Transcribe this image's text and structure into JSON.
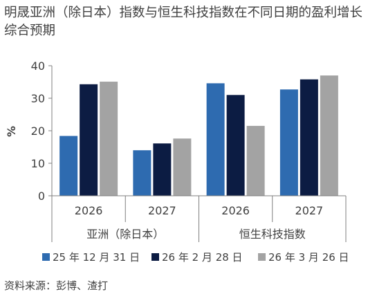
{
  "title": "明晟亚洲（除日本）指数与恒生科技指数在不同日期的盈利增长综合预期",
  "source": "资料来源：彭博、渣打",
  "chart_data": {
    "type": "bar",
    "title": "明晟亚洲（除日本）指数与恒生科技指数在不同日期的盈利增长综合预期",
    "ylabel": "%",
    "ylim": [
      0,
      40
    ],
    "yticks": [
      "0",
      "10",
      "20",
      "30",
      "40"
    ],
    "grid": false,
    "legend_position": "bottom",
    "groups": [
      {
        "label": "亚洲（除日本）",
        "categories": [
          "2026",
          "2027"
        ]
      },
      {
        "label": "恒生科技指数",
        "categories": [
          "2026",
          "2027"
        ]
      }
    ],
    "categories": [
      "2026",
      "2027",
      "2026",
      "2027"
    ],
    "series": [
      {
        "name": "25 年 12 月 31 日",
        "color": "#2E6BB0",
        "values": [
          18.4,
          14.0,
          34.6,
          32.7
        ]
      },
      {
        "name": "26 年 2 月 28 日",
        "color": "#0C1C43",
        "values": [
          34.3,
          16.1,
          31.0,
          35.8
        ]
      },
      {
        "name": "26 年 3 月 26 日",
        "color": "#A3A3A3",
        "values": [
          35.1,
          17.6,
          21.5,
          37.0
        ]
      }
    ]
  }
}
